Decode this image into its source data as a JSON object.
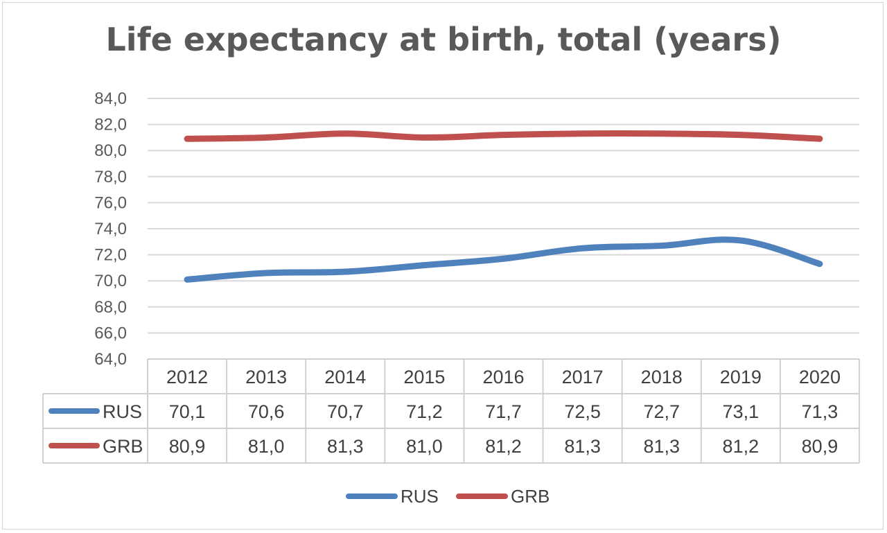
{
  "chart_data": {
    "type": "line",
    "title": "Life expectancy at birth, total (years)",
    "categories": [
      "2012",
      "2013",
      "2014",
      "2015",
      "2016",
      "2017",
      "2018",
      "2019",
      "2020"
    ],
    "series": [
      {
        "name": "RUS",
        "color": "#4f81bd",
        "values": [
          70.1,
          70.6,
          70.7,
          71.2,
          71.7,
          72.5,
          72.7,
          73.1,
          71.3
        ],
        "labels": [
          "70,1",
          "70,6",
          "70,7",
          "71,2",
          "71,7",
          "72,5",
          "72,7",
          "73,1",
          "71,3"
        ]
      },
      {
        "name": "GRB",
        "color": "#c0504d",
        "values": [
          80.9,
          81.0,
          81.3,
          81.0,
          81.2,
          81.3,
          81.3,
          81.2,
          80.9
        ],
        "labels": [
          "80,9",
          "81,0",
          "81,3",
          "81,0",
          "81,2",
          "81,3",
          "81,3",
          "81,2",
          "80,9"
        ]
      }
    ],
    "ylim": [
      64,
      84
    ],
    "yticks": [
      64,
      66,
      68,
      70,
      72,
      74,
      76,
      78,
      80,
      82,
      84
    ],
    "ytick_labels": [
      "64,0",
      "66,0",
      "68,0",
      "70,0",
      "72,0",
      "74,0",
      "76,0",
      "78,0",
      "80,0",
      "82,0",
      "84,0"
    ],
    "grid": true,
    "data_table": true,
    "legend": "bottom-center",
    "xlabel": "",
    "ylabel": ""
  }
}
